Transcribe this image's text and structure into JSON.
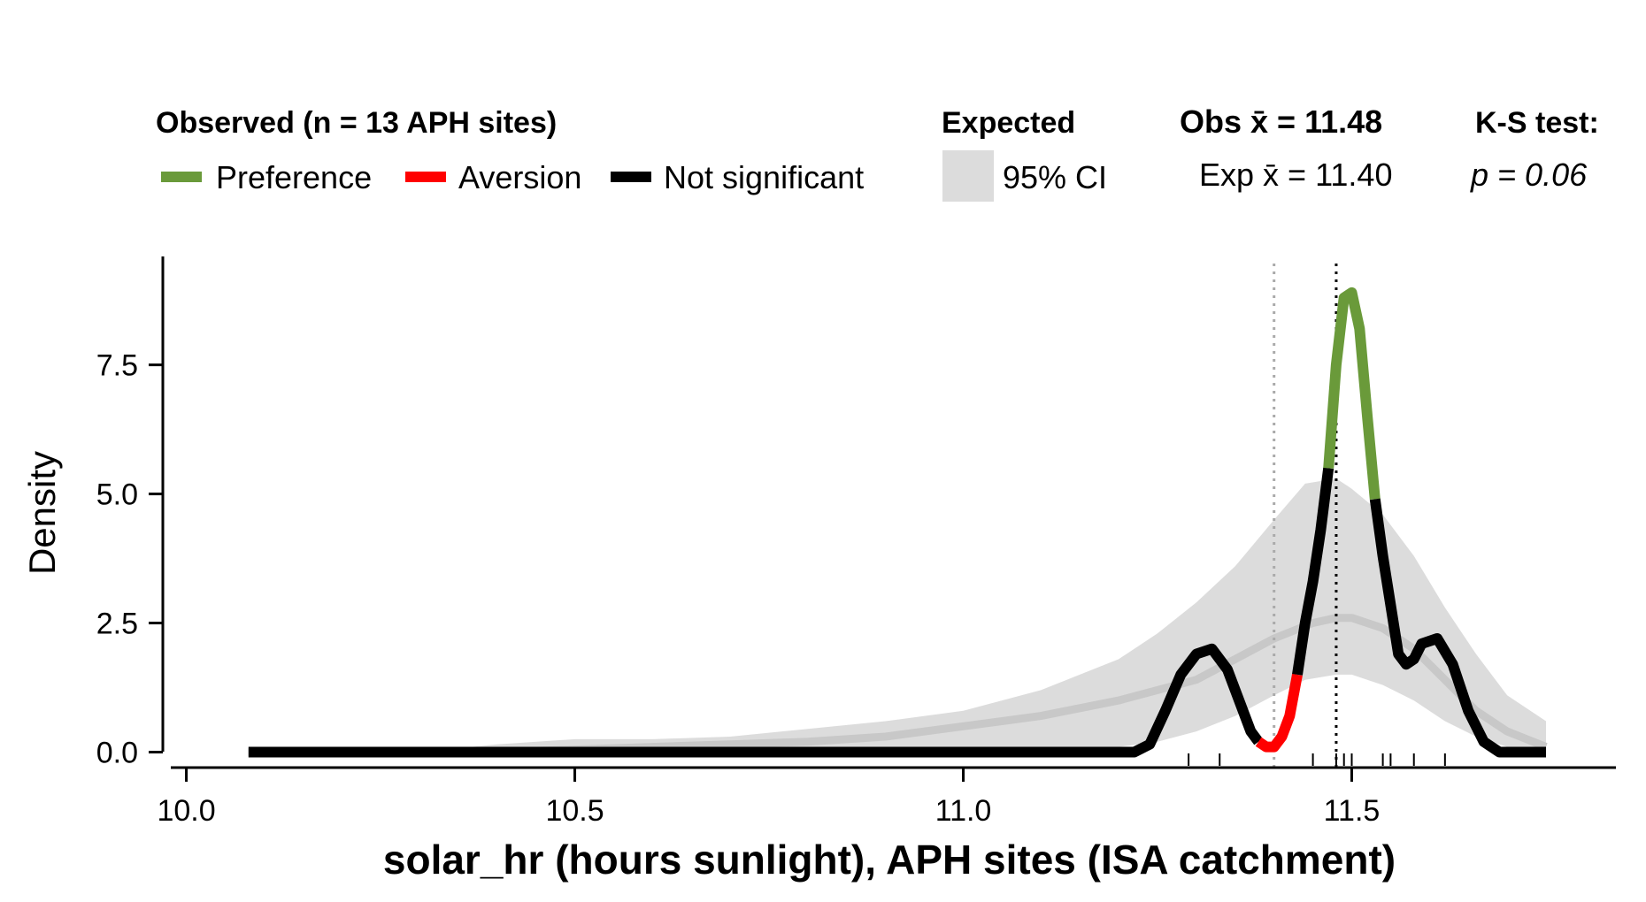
{
  "chart_data": {
    "type": "line",
    "xlabel": "solar_hr (hours sunlight), APH sites (ISA catchment)",
    "ylabel": "Density",
    "xlim": [
      9.98,
      11.84
    ],
    "ylim": [
      -0.3,
      9.6
    ],
    "x_ticks": [
      10.0,
      10.5,
      11.0,
      11.5
    ],
    "x_tick_labels": [
      "10.0",
      "10.5",
      "11.0",
      "11.5"
    ],
    "y_ticks": [
      0.0,
      2.5,
      5.0,
      7.5
    ],
    "y_tick_labels": [
      "0.0",
      "2.5",
      "5.0",
      "7.5"
    ],
    "legend": {
      "observed_title": "Observed (n = 13 APH sites)",
      "items": [
        {
          "label": "Preference",
          "color": "#6a9a3a"
        },
        {
          "label": "Aversion",
          "color": "#ff0000"
        },
        {
          "label": "Not significant",
          "color": "#000000"
        }
      ],
      "expected_title": "Expected",
      "ci_label": "95% CI",
      "ci_color": "#dcdcdc",
      "obs_mean_text": "Obs x̄ = 11.48",
      "exp_mean_text": "Exp x̄ = 11.40",
      "ks_title": "K-S test:",
      "ks_p_text": "p = 0.06"
    },
    "obs_mean": 11.48,
    "exp_mean": 11.4,
    "rug": [
      11.29,
      11.33,
      11.45,
      11.48,
      11.49,
      11.5,
      11.54,
      11.55,
      11.58,
      11.62
    ],
    "expected_ci": {
      "x": [
        10.08,
        10.3,
        10.4,
        10.5,
        10.6,
        10.7,
        10.8,
        10.9,
        11.0,
        11.1,
        11.15,
        11.2,
        11.25,
        11.3,
        11.35,
        11.4,
        11.44,
        11.48,
        11.5,
        11.54,
        11.58,
        11.62,
        11.66,
        11.7,
        11.75
      ],
      "lower": [
        0,
        0,
        0,
        0,
        0,
        0,
        0,
        0,
        0,
        0,
        0.05,
        0.1,
        0.2,
        0.4,
        0.7,
        1.1,
        1.4,
        1.5,
        1.5,
        1.3,
        1.0,
        0.6,
        0.3,
        0.1,
        0
      ],
      "upper": [
        0,
        0,
        0.15,
        0.25,
        0.25,
        0.3,
        0.45,
        0.6,
        0.8,
        1.2,
        1.5,
        1.8,
        2.3,
        2.9,
        3.6,
        4.5,
        5.2,
        5.3,
        5.1,
        4.6,
        3.8,
        2.8,
        1.9,
        1.1,
        0.6
      ]
    },
    "expected_mean": {
      "x": [
        10.08,
        10.3,
        10.4,
        10.5,
        10.6,
        10.7,
        10.8,
        10.9,
        11.0,
        11.1,
        11.2,
        11.3,
        11.35,
        11.4,
        11.45,
        11.48,
        11.5,
        11.54,
        11.58,
        11.62,
        11.66,
        11.7,
        11.75
      ],
      "y": [
        0,
        0,
        0,
        0.05,
        0.1,
        0.15,
        0.2,
        0.3,
        0.5,
        0.7,
        1.0,
        1.4,
        1.8,
        2.2,
        2.5,
        2.6,
        2.6,
        2.4,
        2.0,
        1.4,
        0.8,
        0.4,
        0.1
      ]
    },
    "series": [
      {
        "name": "Not significant",
        "color": "#000000",
        "x": [
          10.08,
          11.22,
          11.24,
          11.26,
          11.28,
          11.3,
          11.32,
          11.34,
          11.36,
          11.37,
          11.38
        ],
        "y": [
          0.0,
          0.0,
          0.15,
          0.8,
          1.5,
          1.9,
          2.0,
          1.6,
          0.8,
          0.4,
          0.2
        ]
      },
      {
        "name": "Aversion",
        "color": "#ff0000",
        "x": [
          11.38,
          11.39,
          11.4,
          11.41,
          11.42,
          11.43
        ],
        "y": [
          0.2,
          0.1,
          0.1,
          0.3,
          0.7,
          1.5
        ]
      },
      {
        "name": "Not significant",
        "color": "#000000",
        "x": [
          11.43,
          11.44,
          11.45,
          11.46,
          11.47
        ],
        "y": [
          1.5,
          2.5,
          3.3,
          4.3,
          5.5
        ]
      },
      {
        "name": "Preference",
        "color": "#6a9a3a",
        "x": [
          11.47,
          11.48,
          11.49,
          11.5,
          11.51,
          11.52,
          11.53
        ],
        "y": [
          5.5,
          7.5,
          8.8,
          8.9,
          8.2,
          6.5,
          4.9
        ]
      },
      {
        "name": "Not significant",
        "color": "#000000",
        "x": [
          11.53,
          11.54,
          11.56,
          11.57,
          11.58,
          11.59,
          11.61,
          11.63,
          11.65,
          11.67,
          11.69,
          11.75
        ],
        "y": [
          4.9,
          3.8,
          1.9,
          1.7,
          1.8,
          2.1,
          2.2,
          1.7,
          0.8,
          0.2,
          0.0,
          0.0
        ]
      }
    ]
  }
}
